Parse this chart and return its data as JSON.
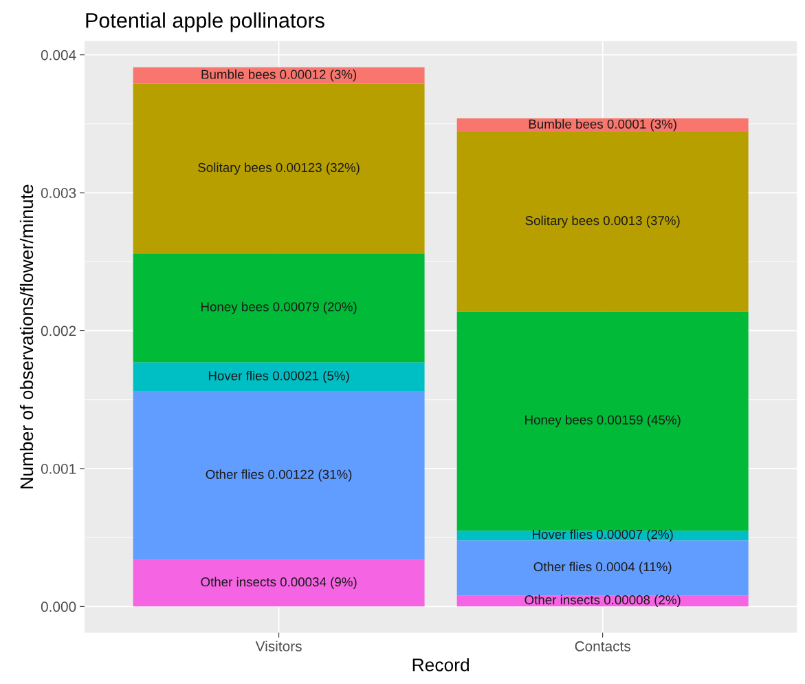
{
  "chart_data": {
    "type": "bar",
    "title": "Potential apple pollinators",
    "xlabel": "Record",
    "ylabel": "Number of observations/flower/minute",
    "categories": [
      "Visitors",
      "Contacts"
    ],
    "stacked": true,
    "series": [
      {
        "color": "#f564e3",
        "values": [
          0.00034,
          8e-05
        ],
        "value_labels": [
          "Other insects 0.00034 (9%)",
          "Other insects 0.00008 (2%)"
        ]
      },
      {
        "color": "#619cff",
        "values": [
          0.00122,
          0.0004
        ],
        "value_labels": [
          "Other flies 0.00122 (31%)",
          "Other flies 0.0004 (11%)"
        ]
      },
      {
        "color": "#00bfc4",
        "values": [
          0.00021,
          7e-05
        ],
        "value_labels": [
          "Hover flies 0.00021 (5%)",
          "Hover flies 0.00007 (2%)"
        ]
      },
      {
        "color": "#00ba38",
        "values": [
          0.00079,
          0.00159
        ],
        "value_labels": [
          "Honey bees 0.00079 (20%)",
          "Honey bees 0.00159 (45%)"
        ]
      },
      {
        "color": "#b79f00",
        "values": [
          0.00123,
          0.0013
        ],
        "value_labels": [
          "Solitary bees 0.00123 (32%)",
          "Solitary bees 0.0013 (37%)"
        ]
      },
      {
        "color": "#f8766d",
        "values": [
          0.00012,
          0.0001
        ],
        "value_labels": [
          "Bumble bees 0.00012 (3%)",
          "Bumble bees 0.0001 (3%)"
        ]
      }
    ],
    "ylim": [
      -0.00019,
      0.0041
    ],
    "yticks": [
      {
        "value": 0,
        "label": "0.000"
      },
      {
        "value": 0.001,
        "label": "0.001"
      },
      {
        "value": 0.002,
        "label": "0.002"
      },
      {
        "value": 0.003,
        "label": "0.003"
      },
      {
        "value": 0.004,
        "label": "0.004"
      }
    ],
    "grid": true
  }
}
